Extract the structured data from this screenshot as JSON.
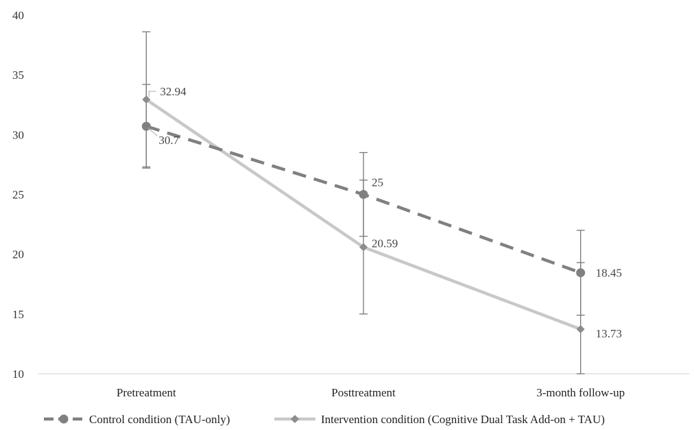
{
  "chart_data": {
    "type": "line",
    "categories": [
      "Pretreatment",
      "Posttreatment",
      "3-month follow-up"
    ],
    "ylim": [
      10,
      40
    ],
    "yticks": [
      10,
      15,
      20,
      25,
      30,
      35,
      40
    ],
    "grid": false,
    "legend_position": "bottom",
    "series": [
      {
        "name": "Control condition (TAU-only)",
        "values": [
          30.7,
          25,
          18.45
        ],
        "error_low": [
          27.2,
          21.5,
          14.9
        ],
        "error_high": [
          34.2,
          28.5,
          22.0
        ],
        "labels": [
          "30.7",
          "25",
          "18.45"
        ],
        "color": "#808080",
        "line_style": "dashed",
        "marker": "circle"
      },
      {
        "name": "Intervention condition (Cognitive Dual Task Add-on + TAU)",
        "values": [
          32.94,
          20.59,
          13.73
        ],
        "error_low": [
          27.3,
          15.0,
          10.0
        ],
        "error_high": [
          38.6,
          26.2,
          19.3
        ],
        "labels": [
          "32.94",
          "20.59",
          "13.73"
        ],
        "color": "#c8c8c8",
        "marker_color": "#8c8c8c",
        "line_style": "solid",
        "marker": "diamond"
      }
    ]
  }
}
